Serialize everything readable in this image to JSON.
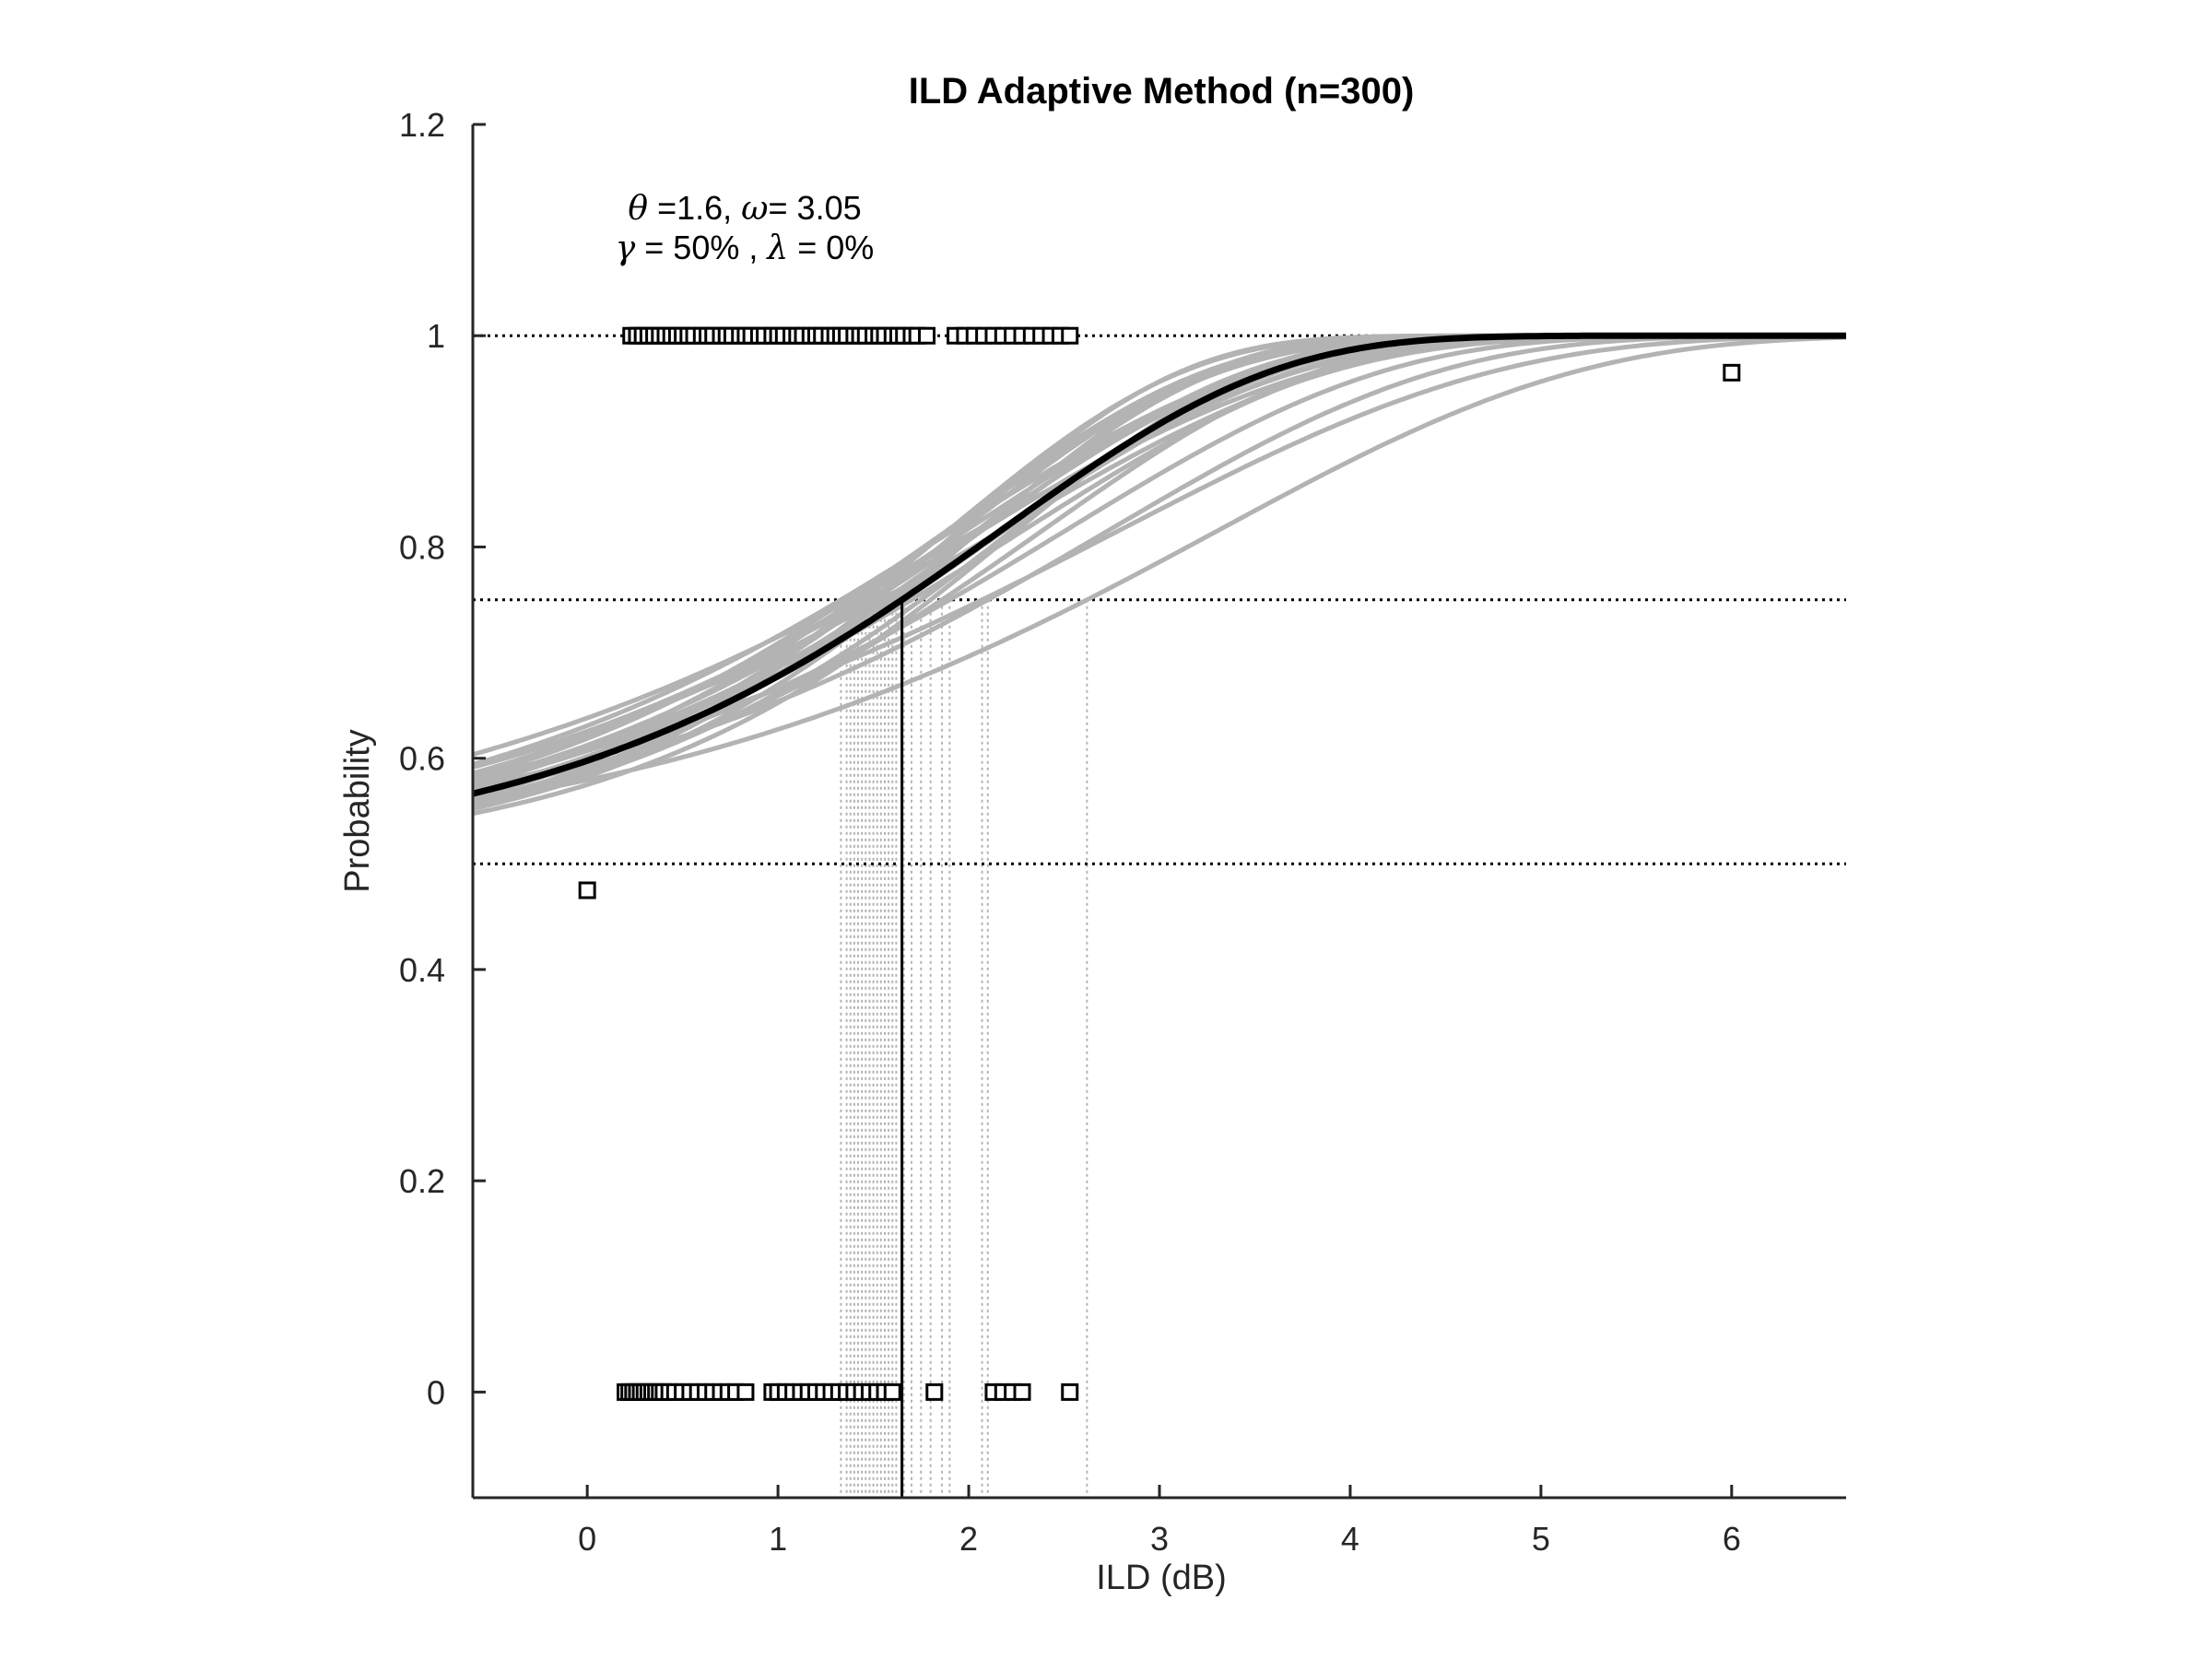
{
  "chart_data": {
    "type": "scatter",
    "title": "ILD Adaptive Method (n=300)",
    "xlabel": "ILD (dB)",
    "ylabel": "Probability",
    "xlim": [
      -0.6,
      6.6
    ],
    "ylim": [
      -0.1,
      1.2
    ],
    "xticks": [
      0,
      1,
      2,
      3,
      4,
      5,
      6
    ],
    "yticks": [
      0,
      0.2,
      0.4,
      0.6,
      0.8,
      1,
      1.2
    ],
    "xtick_labels": [
      "0",
      "1",
      "2",
      "3",
      "4",
      "5",
      "6"
    ],
    "ytick_labels": [
      "0",
      "0.2",
      "0.4",
      "0.6",
      "0.8",
      "1",
      "1.2"
    ],
    "grid": false,
    "annotation": {
      "line1": {
        "theta_sym": "θ",
        "theta_text": " =1.6, ",
        "omega_sym": "ω",
        "omega_text": "= 3.05"
      },
      "line2": {
        "gamma_sym": "γ",
        "gamma_text": " = 50% , ",
        "lambda_sym": "λ",
        "lambda_text": " = 0%"
      }
    },
    "reference_lines_y": [
      1,
      0.75,
      0.5
    ],
    "fit": {
      "threshold": 1.65,
      "slope": 3.05,
      "guess_rate": 0.5,
      "lapse_rate": 0,
      "target": 0.75
    },
    "bootstrap_fits": [
      {
        "threshold": 1.33,
        "slope": 2.7
      },
      {
        "threshold": 1.36,
        "slope": 3.0
      },
      {
        "threshold": 1.38,
        "slope": 2.4
      },
      {
        "threshold": 1.4,
        "slope": 3.2
      },
      {
        "threshold": 1.42,
        "slope": 2.8
      },
      {
        "threshold": 1.44,
        "slope": 3.5
      },
      {
        "threshold": 1.46,
        "slope": 2.6
      },
      {
        "threshold": 1.48,
        "slope": 3.3
      },
      {
        "threshold": 1.5,
        "slope": 2.9
      },
      {
        "threshold": 1.52,
        "slope": 3.7
      },
      {
        "threshold": 1.54,
        "slope": 2.5
      },
      {
        "threshold": 1.56,
        "slope": 3.1
      },
      {
        "threshold": 1.58,
        "slope": 3.4
      },
      {
        "threshold": 1.6,
        "slope": 2.8
      },
      {
        "threshold": 1.62,
        "slope": 3.6
      },
      {
        "threshold": 1.66,
        "slope": 3.0
      },
      {
        "threshold": 1.7,
        "slope": 2.7
      },
      {
        "threshold": 1.75,
        "slope": 3.3
      },
      {
        "threshold": 1.8,
        "slope": 3.5
      },
      {
        "threshold": 1.86,
        "slope": 3.0
      },
      {
        "threshold": 1.9,
        "slope": 2.6
      },
      {
        "threshold": 2.07,
        "slope": 2.2
      },
      {
        "threshold": 2.1,
        "slope": 2.5
      },
      {
        "threshold": 2.62,
        "slope": 2.3
      }
    ],
    "series": [
      {
        "y": 1,
        "x": [
          0.23,
          0.26,
          0.29,
          0.32,
          0.35,
          0.38,
          0.41,
          0.44,
          0.47,
          0.5,
          0.53,
          0.56,
          0.6,
          0.63,
          0.66,
          0.7,
          0.73,
          0.76,
          0.8,
          0.83,
          0.86,
          0.9,
          0.93,
          0.97,
          1.0,
          1.03,
          1.07,
          1.1,
          1.13,
          1.17,
          1.2,
          1.23,
          1.27,
          1.3,
          1.33,
          1.36,
          1.4,
          1.43,
          1.46,
          1.5,
          1.53,
          1.56,
          1.6,
          1.63,
          1.66,
          1.7,
          1.73,
          1.78,
          1.93,
          1.98,
          2.03,
          2.08,
          2.13,
          2.18,
          2.23,
          2.28,
          2.33,
          2.38,
          2.43,
          2.48,
          2.53
        ]
      },
      {
        "y": 0,
        "x": [
          0.2,
          0.22,
          0.24,
          0.26,
          0.28,
          0.3,
          0.32,
          0.34,
          0.36,
          0.38,
          0.4,
          0.43,
          0.46,
          0.5,
          0.54,
          0.58,
          0.62,
          0.66,
          0.7,
          0.74,
          0.78,
          0.83,
          0.97,
          1.0,
          1.04,
          1.08,
          1.12,
          1.16,
          1.2,
          1.24,
          1.28,
          1.32,
          1.36,
          1.4,
          1.44,
          1.48,
          1.52,
          1.56,
          1.6,
          1.82,
          2.13,
          2.18,
          2.23,
          2.28,
          2.53
        ]
      },
      {
        "x": [
          0
        ],
        "y": [
          0.475
        ]
      },
      {
        "x": [
          6
        ],
        "y": [
          0.965
        ]
      }
    ]
  }
}
